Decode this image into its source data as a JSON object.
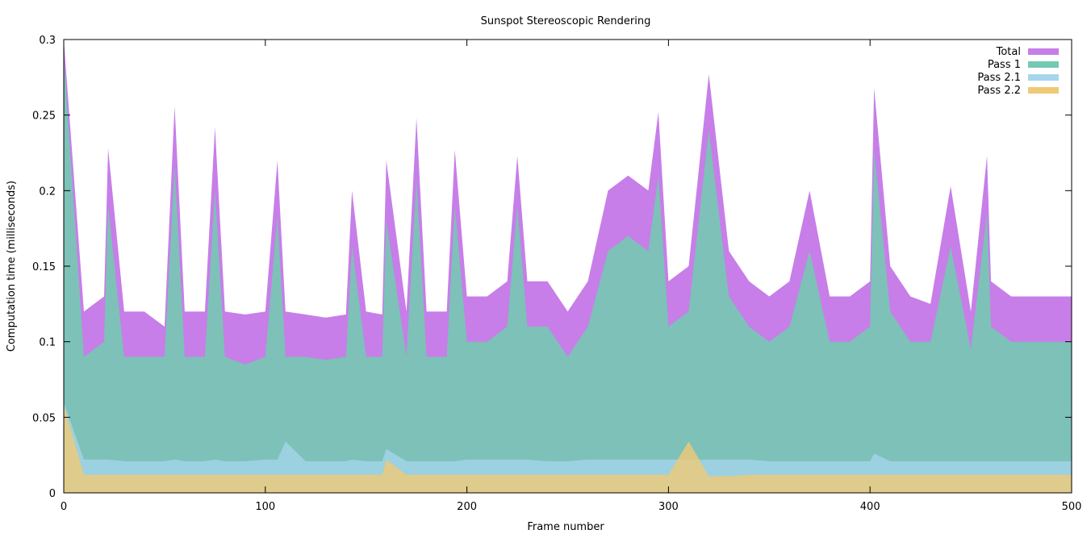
{
  "chart_data": {
    "type": "area",
    "title": "Sunspot Stereoscopic Rendering",
    "xlabel": "Frame number",
    "ylabel": "Computation time (milliseconds)",
    "xlim": [
      0,
      500
    ],
    "ylim": [
      0,
      0.3
    ],
    "xticks": [
      "0",
      "100",
      "200",
      "300",
      "400",
      "500"
    ],
    "yticks": [
      "0",
      "0.05",
      "0.1",
      "0.15",
      "0.2",
      "0.25",
      "0.3"
    ],
    "legend_position": "top-right",
    "grid": false,
    "x": [
      0,
      10,
      20,
      22,
      30,
      40,
      50,
      55,
      60,
      70,
      75,
      80,
      90,
      100,
      106,
      110,
      120,
      130,
      140,
      143,
      150,
      158,
      160,
      170,
      175,
      180,
      190,
      194,
      200,
      210,
      220,
      225,
      230,
      240,
      250,
      260,
      270,
      280,
      290,
      295,
      300,
      310,
      320,
      330,
      340,
      350,
      360,
      370,
      380,
      390,
      400,
      402,
      410,
      420,
      430,
      440,
      450,
      458,
      460,
      470,
      480,
      490,
      500
    ],
    "series": [
      {
        "name": "Total",
        "color": "#c77ee8",
        "values": [
          0.3,
          0.12,
          0.13,
          0.228,
          0.12,
          0.12,
          0.11,
          0.256,
          0.12,
          0.12,
          0.242,
          0.12,
          0.118,
          0.12,
          0.22,
          0.12,
          0.118,
          0.116,
          0.118,
          0.2,
          0.12,
          0.118,
          0.22,
          0.12,
          0.248,
          0.12,
          0.12,
          0.227,
          0.13,
          0.13,
          0.14,
          0.223,
          0.14,
          0.14,
          0.12,
          0.14,
          0.2,
          0.21,
          0.2,
          0.252,
          0.14,
          0.15,
          0.277,
          0.16,
          0.14,
          0.13,
          0.14,
          0.2,
          0.13,
          0.13,
          0.14,
          0.268,
          0.15,
          0.13,
          0.125,
          0.203,
          0.12,
          0.223,
          0.14,
          0.13,
          0.13,
          0.13,
          0.13
        ]
      },
      {
        "name": "Pass 1",
        "color": "#74c9b3",
        "values": [
          0.29,
          0.09,
          0.1,
          0.19,
          0.09,
          0.09,
          0.09,
          0.217,
          0.09,
          0.09,
          0.2,
          0.09,
          0.085,
          0.09,
          0.183,
          0.09,
          0.09,
          0.088,
          0.09,
          0.163,
          0.09,
          0.09,
          0.18,
          0.09,
          0.207,
          0.09,
          0.09,
          0.19,
          0.1,
          0.1,
          0.11,
          0.19,
          0.11,
          0.11,
          0.09,
          0.11,
          0.16,
          0.17,
          0.16,
          0.21,
          0.11,
          0.12,
          0.24,
          0.13,
          0.11,
          0.1,
          0.11,
          0.16,
          0.1,
          0.1,
          0.11,
          0.227,
          0.12,
          0.1,
          0.1,
          0.163,
          0.095,
          0.185,
          0.11,
          0.1,
          0.1,
          0.1,
          0.1
        ]
      },
      {
        "name": "Pass 2.1",
        "color": "#a6d6ee",
        "values": [
          0.06,
          0.022,
          0.022,
          0.022,
          0.021,
          0.021,
          0.021,
          0.022,
          0.021,
          0.021,
          0.022,
          0.021,
          0.021,
          0.022,
          0.022,
          0.034,
          0.021,
          0.021,
          0.021,
          0.022,
          0.021,
          0.021,
          0.029,
          0.021,
          0.021,
          0.021,
          0.021,
          0.021,
          0.022,
          0.022,
          0.022,
          0.022,
          0.022,
          0.021,
          0.021,
          0.022,
          0.022,
          0.022,
          0.022,
          0.022,
          0.022,
          0.022,
          0.022,
          0.022,
          0.022,
          0.021,
          0.021,
          0.021,
          0.021,
          0.021,
          0.021,
          0.026,
          0.021,
          0.021,
          0.021,
          0.021,
          0.021,
          0.021,
          0.021,
          0.021,
          0.021,
          0.021,
          0.021
        ]
      },
      {
        "name": "Pass 2.2",
        "color": "#f0c976",
        "values": [
          0.058,
          0.012,
          0.012,
          0.012,
          0.012,
          0.012,
          0.012,
          0.012,
          0.012,
          0.012,
          0.012,
          0.012,
          0.012,
          0.012,
          0.012,
          0.012,
          0.012,
          0.012,
          0.012,
          0.012,
          0.012,
          0.012,
          0.022,
          0.012,
          0.012,
          0.012,
          0.012,
          0.012,
          0.012,
          0.012,
          0.012,
          0.012,
          0.012,
          0.012,
          0.012,
          0.012,
          0.012,
          0.012,
          0.012,
          0.012,
          0.012,
          0.034,
          0.011,
          0.011,
          0.012,
          0.012,
          0.012,
          0.012,
          0.012,
          0.012,
          0.012,
          0.012,
          0.012,
          0.012,
          0.012,
          0.012,
          0.012,
          0.012,
          0.012,
          0.012,
          0.012,
          0.012,
          0.012
        ]
      }
    ]
  }
}
